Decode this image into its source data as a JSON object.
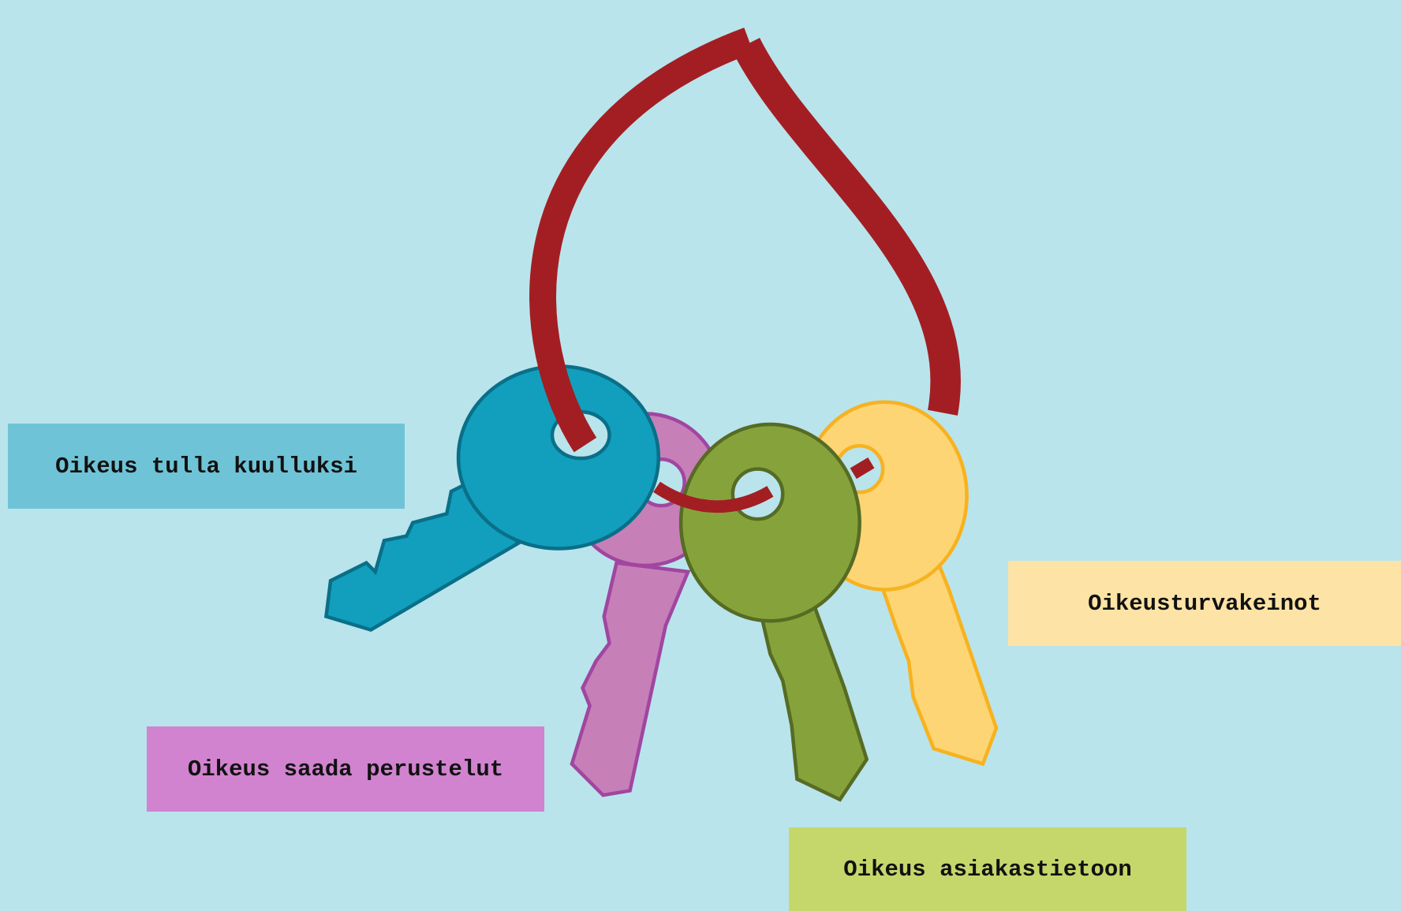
{
  "labels": [
    "Oikeus tulla kuulluksi",
    "Oikeus saada perustelut",
    "Oikeusturvakeinot",
    "Oikeus asiakastietoon"
  ]
}
